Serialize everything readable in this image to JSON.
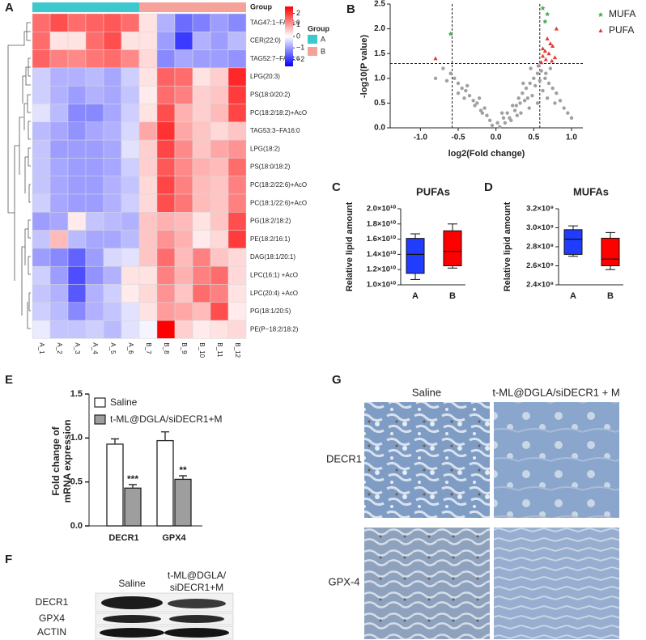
{
  "panels": [
    "A",
    "B",
    "C",
    "D",
    "E",
    "F",
    "G"
  ],
  "chart_data": [
    {
      "type": "heatmap",
      "categories": [
        "A_1",
        "A_2",
        "A_3",
        "A_4",
        "A_5",
        "A_6",
        "B_7",
        "B_8",
        "B_9",
        "B_10",
        "B_11",
        "B_12"
      ],
      "rows": [
        "TAG47:1−FA16:0",
        "CER(22:0)",
        "TAG52:7−FA22:6",
        "LPG(20:3)",
        "PS(18:0/20:2)",
        "PC(18:2/18:2)+AcO",
        "TAG53:3−FA16:0",
        "LPG(18:2)",
        "PS(18:0/18:2)",
        "PC(18:2/22:6)+AcO",
        "PC(18:1/22:6)+AcO",
        "PG(18:2/18:2)",
        "PE(18:2/16:1)",
        "DAG(18:1/20:1)",
        "LPC(16:1) +AcO",
        "LPC(20:4) +AcO",
        "PG(18:1/20:5)",
        "PE(P−18:2/18:2)"
      ],
      "values": [
        [
          1.5,
          1.8,
          1.5,
          1.6,
          1.7,
          1.5,
          0.3,
          -0.8,
          -1.5,
          -1.3,
          -1.0,
          -1.2
        ],
        [
          1.5,
          0.3,
          0.3,
          1.5,
          1.8,
          0.3,
          0.3,
          -1.0,
          -2.0,
          -0.8,
          -1.0,
          -0.7
        ],
        [
          1.6,
          1.3,
          1.2,
          1.4,
          1.5,
          1.2,
          0.4,
          -1.2,
          -0.9,
          -1.0,
          -1.0,
          -1.1
        ],
        [
          -0.5,
          -0.8,
          -0.8,
          -0.7,
          -0.9,
          -0.5,
          0.3,
          1.6,
          1.5,
          0.3,
          0.5,
          2.2
        ],
        [
          -0.5,
          -0.8,
          -1.0,
          -0.8,
          -0.9,
          -0.6,
          0.2,
          1.5,
          1.3,
          0.5,
          0.6,
          2.0
        ],
        [
          -0.3,
          -0.7,
          -1.2,
          -1.2,
          -0.9,
          -0.5,
          0.3,
          1.8,
          0.8,
          0.5,
          0.7,
          1.9
        ],
        [
          -0.7,
          -0.9,
          -1.1,
          -0.9,
          -0.8,
          -0.4,
          0.9,
          2.1,
          0.9,
          0.6,
          0.4,
          0.6
        ],
        [
          -0.6,
          -1.0,
          -1.0,
          -1.0,
          -0.9,
          -0.3,
          0.5,
          1.9,
          1.2,
          0.6,
          0.9,
          1.1
        ],
        [
          -0.6,
          -0.9,
          -1.0,
          -1.0,
          -0.9,
          -0.5,
          0.5,
          1.7,
          1.2,
          0.8,
          0.7,
          1.5
        ],
        [
          -0.6,
          -0.9,
          -1.0,
          -1.0,
          -0.8,
          -0.6,
          0.4,
          1.9,
          1.3,
          0.7,
          0.6,
          1.3
        ],
        [
          -0.5,
          -0.9,
          -1.0,
          -1.0,
          -0.8,
          -0.5,
          0.4,
          1.8,
          1.4,
          0.7,
          0.6,
          1.3
        ],
        [
          -1.0,
          -0.9,
          0.2,
          -0.6,
          -0.7,
          -0.8,
          0.6,
          0.8,
          0.7,
          0.3,
          0.6,
          1.8
        ],
        [
          -0.6,
          0.7,
          -0.7,
          -0.9,
          -0.9,
          -0.7,
          0.6,
          1.1,
          0.8,
          0.2,
          0.4,
          2.0
        ],
        [
          -1.0,
          -1.2,
          -1.6,
          -1.0,
          -0.4,
          -0.3,
          0.6,
          1.5,
          0.7,
          1.3,
          0.6,
          0.4
        ],
        [
          -0.5,
          -1.0,
          -1.8,
          -1.1,
          -0.8,
          0.3,
          0.3,
          1.3,
          0.8,
          1.3,
          1.5,
          0.4
        ],
        [
          -0.6,
          -0.8,
          -1.7,
          -0.8,
          -0.5,
          0.2,
          0.4,
          1.1,
          0.6,
          1.5,
          1.3,
          0.3
        ],
        [
          -0.5,
          -0.7,
          -1.2,
          -0.8,
          -0.6,
          -0.3,
          0.3,
          1.0,
          0.9,
          0.7,
          1.8,
          0.2
        ],
        [
          -0.2,
          -0.6,
          -0.6,
          -0.5,
          -0.7,
          -0.3,
          -0.1,
          2.6,
          0.5,
          0.2,
          0.3,
          0.4
        ]
      ],
      "colors": [
        "#0000ff",
        "#ffffff",
        "#ff0000"
      ],
      "zlim": [
        -2.6,
        2.6
      ],
      "zticks": [
        2,
        1,
        0,
        {
          "value": -1,
          "label": "−1"
        },
        {
          "value": -2,
          "label": "−2"
        }
      ],
      "group_bar_label": "Group",
      "group_title": "Group",
      "groups": [
        {
          "name": "A",
          "color": "#3cc8cc",
          "count": 6
        },
        {
          "name": "B",
          "color": "#f4a29a",
          "count": 6
        }
      ]
    },
    {
      "type": "scatter",
      "xlabel": "log2(Fold change)",
      "ylabel": "-log10(P value)",
      "xlim": [
        -1.4,
        1.15
      ],
      "ylim": [
        0,
        2.5
      ],
      "xticks": [
        {
          "value": -1,
          "label": "-1.0"
        },
        -0.5,
        {
          "value": 0,
          "label": "0.0"
        },
        0.5,
        {
          "value": 1,
          "label": "1.0"
        }
      ],
      "yticks": [
        {
          "value": 0,
          "label": "0.0"
        },
        0.5,
        {
          "value": 1,
          "label": "1.0"
        },
        1.5,
        {
          "value": 2,
          "label": "2.0"
        },
        2.5
      ],
      "thresholds": {
        "x": [
          -0.58,
          0.58
        ],
        "y": 1.3
      },
      "points": {
        "color": "#a0a0a0",
        "x": [
          -0.05,
          0.02,
          0.1,
          -0.12,
          0.15,
          -0.2,
          0.22,
          -0.25,
          0.3,
          -0.3,
          0.35,
          -0.35,
          0.4,
          -0.4,
          0.45,
          -0.45,
          0.5,
          -0.5,
          0.55,
          -0.55,
          0.6,
          0.65,
          0.7,
          0.75,
          0.8,
          0.85,
          0.9,
          -0.6,
          -0.7,
          -0.8,
          0.05,
          -0.08,
          0.12,
          -0.15,
          0.18,
          0.25,
          -0.22,
          0.28,
          -0.28,
          0.32,
          0.38,
          -0.38,
          0.42,
          0.48,
          -0.42,
          0.52,
          0.58,
          0.62,
          0.68,
          0.72,
          0.78,
          0.95,
          1.0,
          -0.65,
          -0.5,
          0.33,
          0.44,
          0.55,
          -0.18,
          0.08,
          0.2,
          0.27,
          0.36,
          0.46,
          0.56,
          0.66
        ],
        "y": [
          0.05,
          0.1,
          0.2,
          0.25,
          0.3,
          0.35,
          0.45,
          0.5,
          0.6,
          0.55,
          0.7,
          0.65,
          0.8,
          0.75,
          0.9,
          0.8,
          1.0,
          0.9,
          1.1,
          1.0,
          1.15,
          1.0,
          0.9,
          0.8,
          0.7,
          0.55,
          0.4,
          1.1,
          1.2,
          1.0,
          0.02,
          0.15,
          0.1,
          0.4,
          0.2,
          0.35,
          0.6,
          0.25,
          0.45,
          0.5,
          0.55,
          0.85,
          0.6,
          0.65,
          0.6,
          0.85,
          0.95,
          0.75,
          0.6,
          1.2,
          0.5,
          0.3,
          0.2,
          0.95,
          0.7,
          0.3,
          0.4,
          0.5,
          0.3,
          0.3,
          0.15,
          0.45,
          0.9,
          1.2,
          1.25,
          1.1
        ]
      },
      "series": [
        {
          "name": "MUFA",
          "color": "#4caf50",
          "marker": "star",
          "x": [
            0.62,
            0.68,
            0.65,
            -0.6
          ],
          "y": [
            2.42,
            2.3,
            2.15,
            1.9
          ]
        },
        {
          "name": "PUFA",
          "color": "#e53935",
          "marker": "triangle",
          "x": [
            0.8,
            0.68,
            0.72,
            0.62,
            0.75,
            0.65,
            0.7,
            0.62,
            0.78,
            0.66,
            0.74,
            0.6,
            -0.8
          ],
          "y": [
            2.0,
            1.8,
            1.7,
            1.6,
            1.65,
            1.55,
            1.5,
            1.45,
            1.42,
            1.38,
            1.35,
            1.32,
            1.4
          ]
        }
      ],
      "legend": "right"
    },
    {
      "type": "box",
      "title": "PUFAs",
      "ylabel": "Relative lipid amount",
      "categories": [
        "A",
        "B"
      ],
      "colors": [
        "#1f3cff",
        "#ff0000"
      ],
      "boxes": [
        {
          "min": 10700000000,
          "q1": 11500000000,
          "median": 14000000000,
          "q3": 16100000000,
          "max": 16700000000
        },
        {
          "min": 12200000000,
          "q1": 12500000000,
          "median": 14400000000,
          "q3": 17100000000,
          "max": 18000000000
        }
      ],
      "ylim": [
        10000000000,
        20000000000
      ],
      "yticks": [
        {
          "value": 10000000000,
          "label": "1.0×10¹⁰"
        },
        {
          "value": 12000000000,
          "label": "1.2×10¹⁰"
        },
        {
          "value": 14000000000,
          "label": "1.4×10¹⁰"
        },
        {
          "value": 16000000000,
          "label": "1.6×10¹⁰"
        },
        {
          "value": 18000000000,
          "label": "1.8×10¹⁰"
        },
        {
          "value": 20000000000,
          "label": "2.0×10¹⁰"
        }
      ]
    },
    {
      "type": "box",
      "title": "MUFAs",
      "ylabel": "Relative lipid amount",
      "categories": [
        "A",
        "B"
      ],
      "colors": [
        "#1f3cff",
        "#ff0000"
      ],
      "boxes": [
        {
          "min": 2700000000,
          "q1": 2720000000,
          "median": 2880000000,
          "q3": 2980000000,
          "max": 3020000000
        },
        {
          "min": 2560000000,
          "q1": 2600000000,
          "median": 2670000000,
          "q3": 2890000000,
          "max": 2950000000
        }
      ],
      "ylim": [
        2400000000,
        3200000000
      ],
      "yticks": [
        {
          "value": 2400000000,
          "label": "2.4×10⁹"
        },
        {
          "value": 2600000000,
          "label": "2.6×10⁹"
        },
        {
          "value": 2800000000,
          "label": "2.8×10⁹"
        },
        {
          "value": 3000000000,
          "label": "3.0×10⁹"
        },
        {
          "value": 3200000000,
          "label": "3.2×10⁹"
        }
      ]
    },
    {
      "type": "bar",
      "ylabel": [
        "Fold change of",
        "mRNA expression"
      ],
      "categories": [
        "DECR1",
        "GPX4"
      ],
      "series": [
        {
          "name": "Saline",
          "color": "#ffffff",
          "values": [
            0.93,
            0.97
          ],
          "errors": [
            0.06,
            0.1
          ]
        },
        {
          "name": "t-ML@DGLA/siDECR1+M",
          "color": "#9e9e9e",
          "values": [
            0.43,
            0.53
          ],
          "errors": [
            0.04,
            0.04
          ],
          "annotations": [
            "***",
            "**"
          ]
        }
      ],
      "ylim": [
        0,
        1.5
      ],
      "yticks": [
        {
          "value": 0,
          "label": "0.0"
        },
        0.5,
        {
          "value": 1,
          "label": "1.0"
        },
        1.5
      ],
      "legend": "top-left"
    }
  ],
  "blot": {
    "columns": [
      [
        "Saline"
      ],
      [
        "t-ML@DGLA/",
        "siDECR1+M"
      ]
    ],
    "rows": [
      "DECR1",
      "GPX4",
      "ACTIN"
    ]
  },
  "ihc": {
    "columns": [
      "Saline",
      "t-ML@DGLA/siDECR1 + M"
    ],
    "rows": [
      "DECR1",
      "GPX-4"
    ]
  }
}
